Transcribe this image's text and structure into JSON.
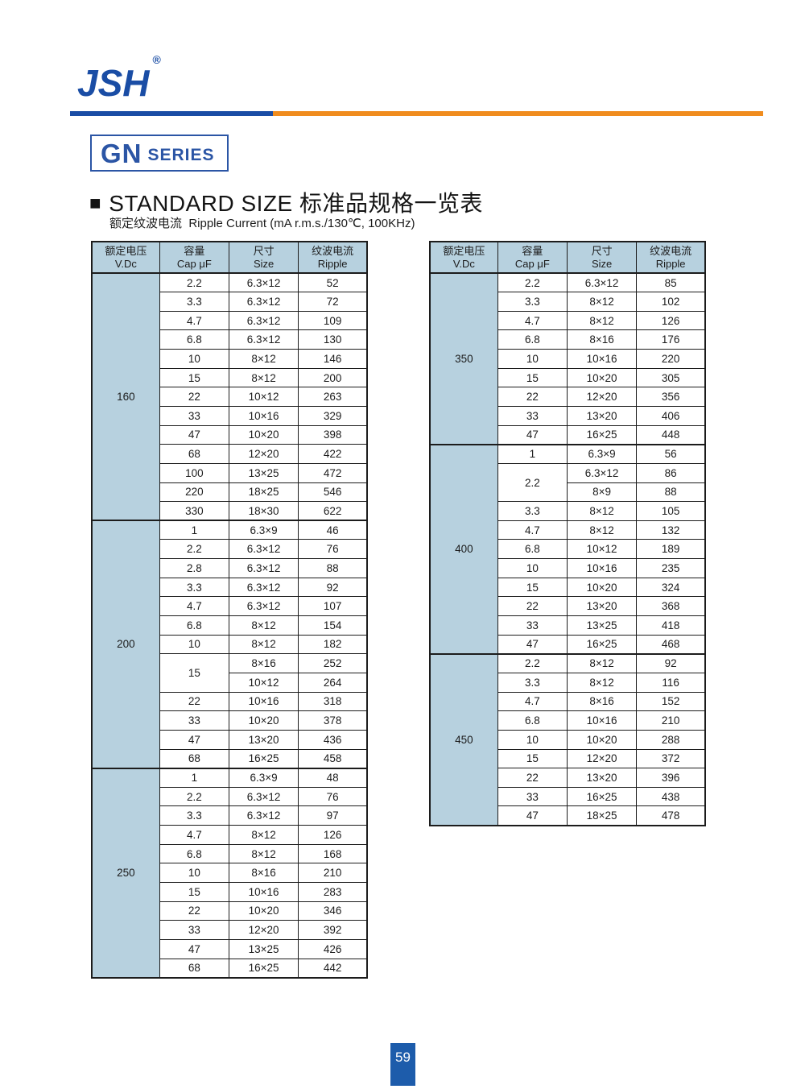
{
  "brand": {
    "name": "JSH",
    "registered": "®"
  },
  "series": {
    "main": "GN",
    "sub": "SERIES"
  },
  "heading": {
    "marker": "■",
    "text": "STANDARD SIZE 标准品规格一览表"
  },
  "subtitle": {
    "text": "额定纹波电流  Ripple Current (mA r.m.s./130℃, 100KHz)"
  },
  "footer": {
    "page_number": "59"
  },
  "colors": {
    "accent_blue": "#1a4da5",
    "accent_orange": "#f08c1e",
    "series_blue": "#2b55a5",
    "table_fill": "#b7d1df",
    "border_dark": "#1c1c1c",
    "badge_blue": "#1d5cab"
  },
  "columns": {
    "voltage_zh": "额定电压",
    "voltage_en": "V.Dc",
    "cap_zh": "容量",
    "cap_en": "Cap  μF",
    "size_zh": "尺寸",
    "size_en": "Size",
    "ripple_zh": "纹波电流",
    "ripple_en": "Ripple"
  },
  "tables": [
    {
      "groups": [
        {
          "voltage": "160",
          "rows": [
            {
              "cap": "2.2",
              "cells": [
                [
                  "6.3×12",
                  "52"
                ]
              ]
            },
            {
              "cap": "3.3",
              "cells": [
                [
                  "6.3×12",
                  "72"
                ]
              ]
            },
            {
              "cap": "4.7",
              "cells": [
                [
                  "6.3×12",
                  "109"
                ]
              ]
            },
            {
              "cap": "6.8",
              "cells": [
                [
                  "6.3×12",
                  "130"
                ]
              ]
            },
            {
              "cap": "10",
              "cells": [
                [
                  "8×12",
                  "146"
                ]
              ]
            },
            {
              "cap": "15",
              "cells": [
                [
                  "8×12",
                  "200"
                ]
              ]
            },
            {
              "cap": "22",
              "cells": [
                [
                  "10×12",
                  "263"
                ]
              ]
            },
            {
              "cap": "33",
              "cells": [
                [
                  "10×16",
                  "329"
                ]
              ]
            },
            {
              "cap": "47",
              "cells": [
                [
                  "10×20",
                  "398"
                ]
              ]
            },
            {
              "cap": "68",
              "cells": [
                [
                  "12×20",
                  "422"
                ]
              ]
            },
            {
              "cap": "100",
              "cells": [
                [
                  "13×25",
                  "472"
                ]
              ]
            },
            {
              "cap": "220",
              "cells": [
                [
                  "18×25",
                  "546"
                ]
              ]
            },
            {
              "cap": "330",
              "cells": [
                [
                  "18×30",
                  "622"
                ]
              ]
            }
          ]
        },
        {
          "voltage": "200",
          "rows": [
            {
              "cap": "1",
              "cells": [
                [
                  "6.3×9",
                  "46"
                ]
              ]
            },
            {
              "cap": "2.2",
              "cells": [
                [
                  "6.3×12",
                  "76"
                ]
              ]
            },
            {
              "cap": "2.8",
              "cells": [
                [
                  "6.3×12",
                  "88"
                ]
              ]
            },
            {
              "cap": "3.3",
              "cells": [
                [
                  "6.3×12",
                  "92"
                ]
              ]
            },
            {
              "cap": "4.7",
              "cells": [
                [
                  "6.3×12",
                  "107"
                ]
              ]
            },
            {
              "cap": "6.8",
              "cells": [
                [
                  "8×12",
                  "154"
                ]
              ]
            },
            {
              "cap": "10",
              "cells": [
                [
                  "8×12",
                  "182"
                ]
              ]
            },
            {
              "cap": "15",
              "cells": [
                [
                  "8×16",
                  "252"
                ],
                [
                  "10×12",
                  "264"
                ]
              ]
            },
            {
              "cap": "22",
              "cells": [
                [
                  "10×16",
                  "318"
                ]
              ]
            },
            {
              "cap": "33",
              "cells": [
                [
                  "10×20",
                  "378"
                ]
              ]
            },
            {
              "cap": "47",
              "cells": [
                [
                  "13×20",
                  "436"
                ]
              ]
            },
            {
              "cap": "68",
              "cells": [
                [
                  "16×25",
                  "458"
                ]
              ]
            }
          ]
        },
        {
          "voltage": "250",
          "rows": [
            {
              "cap": "1",
              "cells": [
                [
                  "6.3×9",
                  "48"
                ]
              ]
            },
            {
              "cap": "2.2",
              "cells": [
                [
                  "6.3×12",
                  "76"
                ]
              ]
            },
            {
              "cap": "3.3",
              "cells": [
                [
                  "6.3×12",
                  "97"
                ]
              ]
            },
            {
              "cap": "4.7",
              "cells": [
                [
                  "8×12",
                  "126"
                ]
              ]
            },
            {
              "cap": "6.8",
              "cells": [
                [
                  "8×12",
                  "168"
                ]
              ]
            },
            {
              "cap": "10",
              "cells": [
                [
                  "8×16",
                  "210"
                ]
              ]
            },
            {
              "cap": "15",
              "cells": [
                [
                  "10×16",
                  "283"
                ]
              ]
            },
            {
              "cap": "22",
              "cells": [
                [
                  "10×20",
                  "346"
                ]
              ]
            },
            {
              "cap": "33",
              "cells": [
                [
                  "12×20",
                  "392"
                ]
              ]
            },
            {
              "cap": "47",
              "cells": [
                [
                  "13×25",
                  "426"
                ]
              ]
            },
            {
              "cap": "68",
              "cells": [
                [
                  "16×25",
                  "442"
                ]
              ]
            }
          ]
        }
      ]
    },
    {
      "groups": [
        {
          "voltage": "350",
          "rows": [
            {
              "cap": "2.2",
              "cells": [
                [
                  "6.3×12",
                  "85"
                ]
              ]
            },
            {
              "cap": "3.3",
              "cells": [
                [
                  "8×12",
                  "102"
                ]
              ]
            },
            {
              "cap": "4.7",
              "cells": [
                [
                  "8×12",
                  "126"
                ]
              ]
            },
            {
              "cap": "6.8",
              "cells": [
                [
                  "8×16",
                  "176"
                ]
              ]
            },
            {
              "cap": "10",
              "cells": [
                [
                  "10×16",
                  "220"
                ]
              ]
            },
            {
              "cap": "15",
              "cells": [
                [
                  "10×20",
                  "305"
                ]
              ]
            },
            {
              "cap": "22",
              "cells": [
                [
                  "12×20",
                  "356"
                ]
              ]
            },
            {
              "cap": "33",
              "cells": [
                [
                  "13×20",
                  "406"
                ]
              ]
            },
            {
              "cap": "47",
              "cells": [
                [
                  "16×25",
                  "448"
                ]
              ]
            }
          ]
        },
        {
          "voltage": "400",
          "rows": [
            {
              "cap": "1",
              "cells": [
                [
                  "6.3×9",
                  "56"
                ]
              ]
            },
            {
              "cap": "2.2",
              "cells": [
                [
                  "6.3×12",
                  "86"
                ],
                [
                  "8×9",
                  "88"
                ]
              ]
            },
            {
              "cap": "3.3",
              "cells": [
                [
                  "8×12",
                  "105"
                ]
              ]
            },
            {
              "cap": "4.7",
              "cells": [
                [
                  "8×12",
                  "132"
                ]
              ]
            },
            {
              "cap": "6.8",
              "cells": [
                [
                  "10×12",
                  "189"
                ]
              ]
            },
            {
              "cap": "10",
              "cells": [
                [
                  "10×16",
                  "235"
                ]
              ]
            },
            {
              "cap": "15",
              "cells": [
                [
                  "10×20",
                  "324"
                ]
              ]
            },
            {
              "cap": "22",
              "cells": [
                [
                  "13×20",
                  "368"
                ]
              ]
            },
            {
              "cap": "33",
              "cells": [
                [
                  "13×25",
                  "418"
                ]
              ]
            },
            {
              "cap": "47",
              "cells": [
                [
                  "16×25",
                  "468"
                ]
              ]
            }
          ]
        },
        {
          "voltage": "450",
          "rows": [
            {
              "cap": "2.2",
              "cells": [
                [
                  "8×12",
                  "92"
                ]
              ]
            },
            {
              "cap": "3.3",
              "cells": [
                [
                  "8×12",
                  "116"
                ]
              ]
            },
            {
              "cap": "4.7",
              "cells": [
                [
                  "8×16",
                  "152"
                ]
              ]
            },
            {
              "cap": "6.8",
              "cells": [
                [
                  "10×16",
                  "210"
                ]
              ]
            },
            {
              "cap": "10",
              "cells": [
                [
                  "10×20",
                  "288"
                ]
              ]
            },
            {
              "cap": "15",
              "cells": [
                [
                  "12×20",
                  "372"
                ]
              ]
            },
            {
              "cap": "22",
              "cells": [
                [
                  "13×20",
                  "396"
                ]
              ]
            },
            {
              "cap": "33",
              "cells": [
                [
                  "16×25",
                  "438"
                ]
              ]
            },
            {
              "cap": "47",
              "cells": [
                [
                  "18×25",
                  "478"
                ]
              ]
            }
          ]
        }
      ]
    }
  ]
}
